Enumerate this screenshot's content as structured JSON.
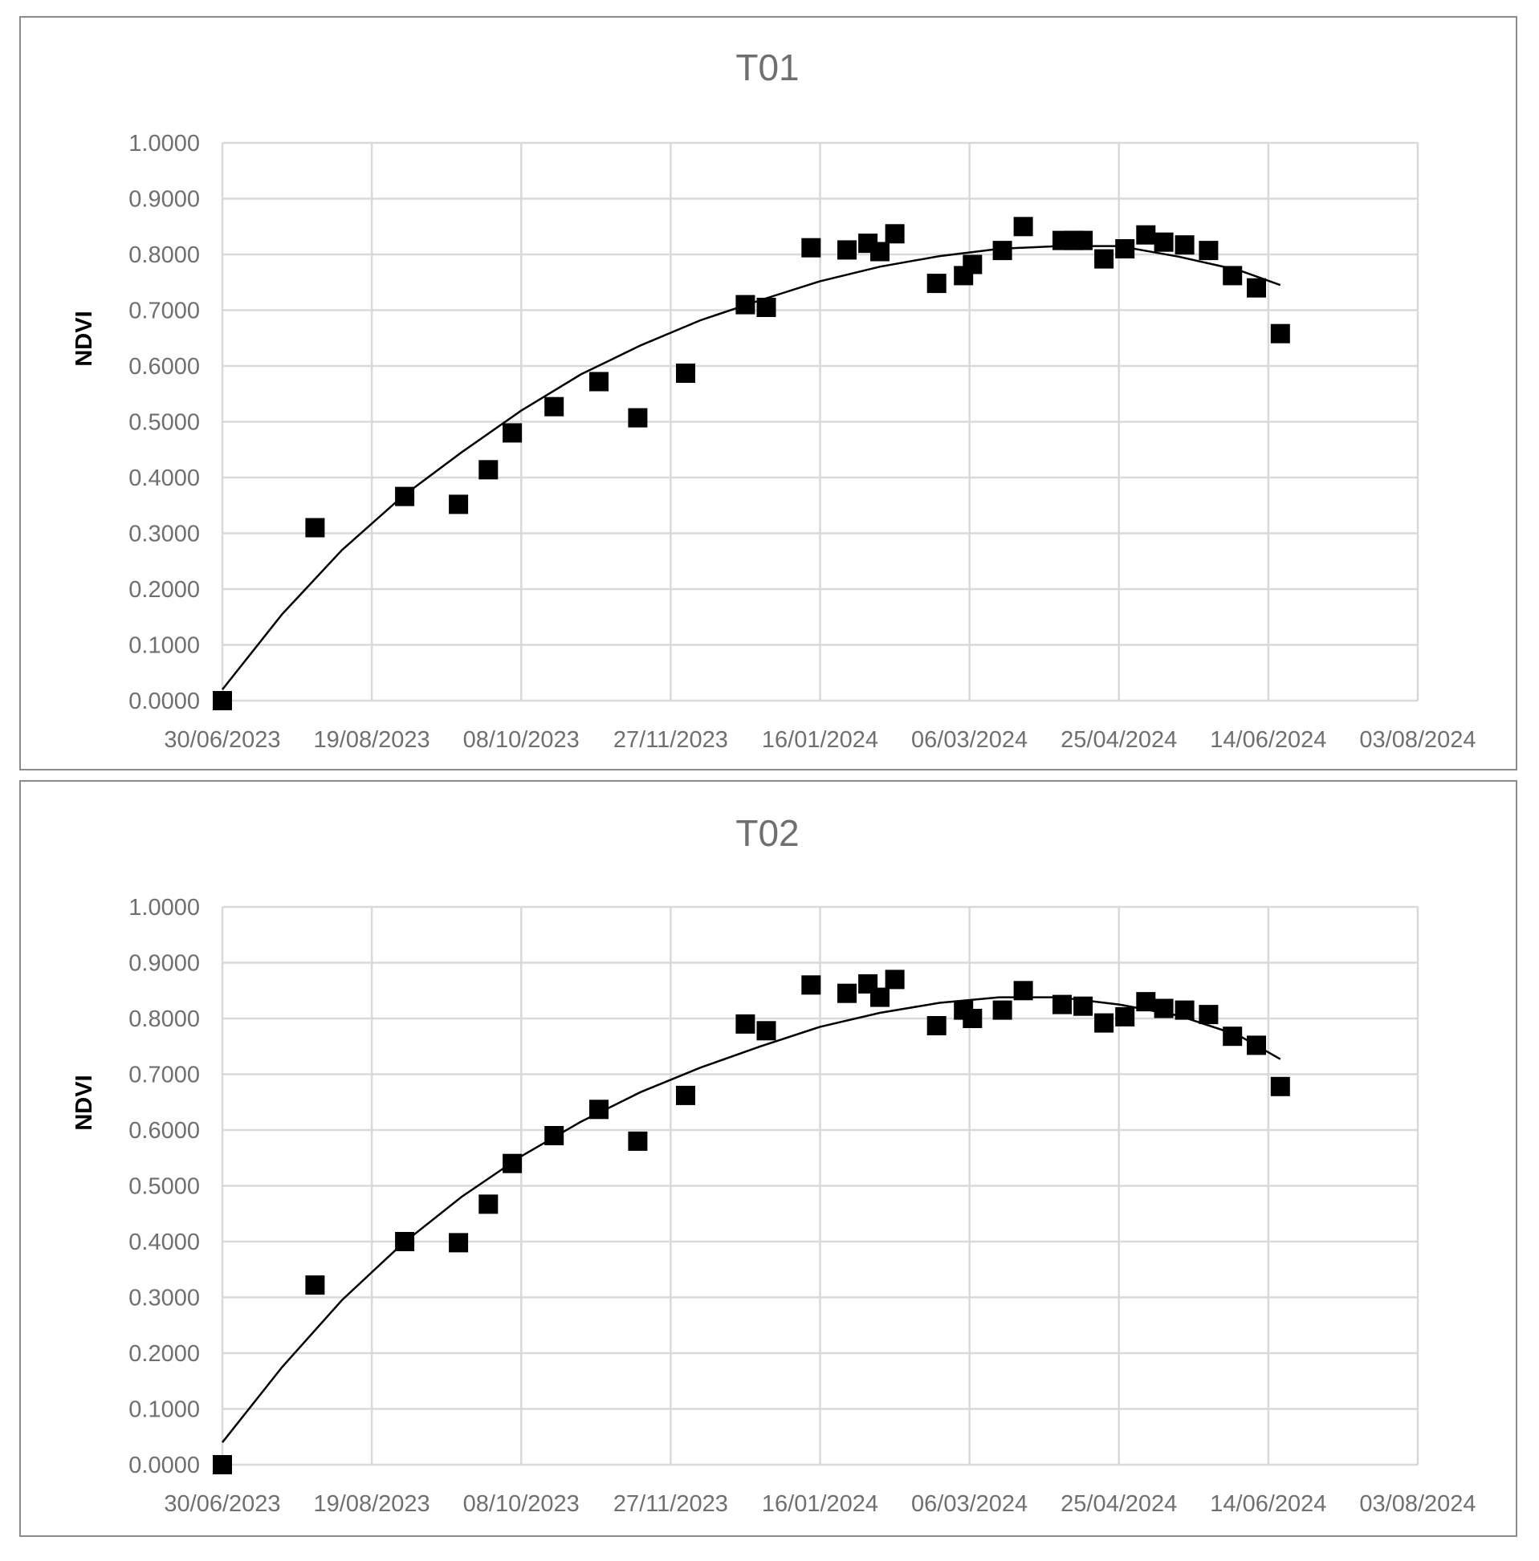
{
  "chart_data": [
    {
      "type": "scatter",
      "title": "T01",
      "xlabel": "",
      "ylabel": "NDVI",
      "xlim": [
        "30/06/2023",
        "03/08/2024"
      ],
      "ylim": [
        0,
        1
      ],
      "x_ticks": [
        "30/06/2023",
        "19/08/2023",
        "08/10/2023",
        "27/11/2023",
        "16/01/2024",
        "06/03/2024",
        "25/04/2024",
        "14/06/2024",
        "03/08/2024"
      ],
      "y_ticks": [
        "0.0000",
        "0.1000",
        "0.2000",
        "0.3000",
        "0.4000",
        "0.5000",
        "0.6000",
        "0.7000",
        "0.8000",
        "0.9000",
        "1.0000"
      ],
      "grid": true,
      "marker": "square",
      "trendline": "polynomial",
      "series": [
        {
          "points": [
            [
              "2023-06-30",
              0.0
            ],
            [
              "2023-07-31",
              0.31
            ],
            [
              "2023-08-30",
              0.366
            ],
            [
              "2023-09-17",
              0.352
            ],
            [
              "2023-09-27",
              0.414
            ],
            [
              "2023-10-05",
              0.48
            ],
            [
              "2023-10-19",
              0.527
            ],
            [
              "2023-11-03",
              0.572
            ],
            [
              "2023-11-16",
              0.507
            ],
            [
              "2023-12-02",
              0.587
            ],
            [
              "2023-12-22",
              0.71
            ],
            [
              "2023-12-29",
              0.705
            ],
            [
              "2024-01-13",
              0.812
            ],
            [
              "2024-01-25",
              0.808
            ],
            [
              "2024-02-01",
              0.82
            ],
            [
              "2024-02-05",
              0.805
            ],
            [
              "2024-02-10",
              0.837
            ],
            [
              "2024-02-24",
              0.748
            ],
            [
              "2024-03-04",
              0.762
            ],
            [
              "2024-03-07",
              0.782
            ],
            [
              "2024-03-17",
              0.807
            ],
            [
              "2024-03-24",
              0.85
            ],
            [
              "2024-04-06",
              0.825
            ],
            [
              "2024-04-10",
              0.825
            ],
            [
              "2024-04-13",
              0.825
            ],
            [
              "2024-04-20",
              0.792
            ],
            [
              "2024-04-27",
              0.81
            ],
            [
              "2024-05-04",
              0.835
            ],
            [
              "2024-05-10",
              0.822
            ],
            [
              "2024-05-17",
              0.817
            ],
            [
              "2024-05-25",
              0.807
            ],
            [
              "2024-06-02",
              0.762
            ],
            [
              "2024-06-10",
              0.74
            ],
            [
              "2024-06-18",
              0.658
            ]
          ],
          "trend": [
            [
              "2023-06-30",
              0.02
            ],
            [
              "2023-07-20",
              0.155
            ],
            [
              "2023-08-09",
              0.27
            ],
            [
              "2023-08-29",
              0.365
            ],
            [
              "2023-09-18",
              0.445
            ],
            [
              "2023-10-08",
              0.52
            ],
            [
              "2023-10-28",
              0.585
            ],
            [
              "2023-11-17",
              0.637
            ],
            [
              "2023-12-07",
              0.682
            ],
            [
              "2023-12-27",
              0.718
            ],
            [
              "2024-01-16",
              0.752
            ],
            [
              "2024-02-05",
              0.778
            ],
            [
              "2024-02-25",
              0.797
            ],
            [
              "2024-03-16",
              0.81
            ],
            [
              "2024-04-05",
              0.815
            ],
            [
              "2024-04-25",
              0.815
            ],
            [
              "2024-05-15",
              0.796
            ],
            [
              "2024-06-04",
              0.772
            ],
            [
              "2024-06-18",
              0.745
            ]
          ]
        }
      ]
    },
    {
      "type": "scatter",
      "title": "T02",
      "xlabel": "",
      "ylabel": "NDVI",
      "xlim": [
        "30/06/2023",
        "03/08/2024"
      ],
      "ylim": [
        0,
        1
      ],
      "x_ticks": [
        "30/06/2023",
        "19/08/2023",
        "08/10/2023",
        "27/11/2023",
        "16/01/2024",
        "06/03/2024",
        "25/04/2024",
        "14/06/2024",
        "03/08/2024"
      ],
      "y_ticks": [
        "0.0000",
        "0.1000",
        "0.2000",
        "0.3000",
        "0.4000",
        "0.5000",
        "0.6000",
        "0.7000",
        "0.8000",
        "0.9000",
        "1.0000"
      ],
      "grid": true,
      "marker": "square",
      "trendline": "polynomial",
      "series": [
        {
          "points": [
            [
              "2023-06-30",
              0.0
            ],
            [
              "2023-07-31",
              0.322
            ],
            [
              "2023-08-30",
              0.4
            ],
            [
              "2023-09-17",
              0.398
            ],
            [
              "2023-09-27",
              0.467
            ],
            [
              "2023-10-05",
              0.54
            ],
            [
              "2023-10-19",
              0.59
            ],
            [
              "2023-11-03",
              0.637
            ],
            [
              "2023-11-16",
              0.58
            ],
            [
              "2023-12-02",
              0.662
            ],
            [
              "2023-12-22",
              0.79
            ],
            [
              "2023-12-29",
              0.778
            ],
            [
              "2024-01-13",
              0.86
            ],
            [
              "2024-01-25",
              0.845
            ],
            [
              "2024-02-01",
              0.862
            ],
            [
              "2024-02-05",
              0.838
            ],
            [
              "2024-02-10",
              0.87
            ],
            [
              "2024-02-24",
              0.787
            ],
            [
              "2024-03-04",
              0.815
            ],
            [
              "2024-03-07",
              0.8
            ],
            [
              "2024-03-17",
              0.815
            ],
            [
              "2024-03-24",
              0.85
            ],
            [
              "2024-04-06",
              0.825
            ],
            [
              "2024-04-13",
              0.822
            ],
            [
              "2024-04-20",
              0.792
            ],
            [
              "2024-04-27",
              0.803
            ],
            [
              "2024-05-04",
              0.83
            ],
            [
              "2024-05-10",
              0.818
            ],
            [
              "2024-05-17",
              0.815
            ],
            [
              "2024-05-25",
              0.807
            ],
            [
              "2024-06-02",
              0.768
            ],
            [
              "2024-06-10",
              0.752
            ],
            [
              "2024-06-18",
              0.678
            ]
          ],
          "trend": [
            [
              "2023-06-30",
              0.04
            ],
            [
              "2023-07-20",
              0.175
            ],
            [
              "2023-08-09",
              0.295
            ],
            [
              "2023-08-29",
              0.395
            ],
            [
              "2023-09-18",
              0.48
            ],
            [
              "2023-10-08",
              0.553
            ],
            [
              "2023-10-28",
              0.615
            ],
            [
              "2023-11-17",
              0.668
            ],
            [
              "2023-12-07",
              0.712
            ],
            [
              "2023-12-27",
              0.75
            ],
            [
              "2024-01-16",
              0.785
            ],
            [
              "2024-02-05",
              0.81
            ],
            [
              "2024-02-25",
              0.828
            ],
            [
              "2024-03-16",
              0.838
            ],
            [
              "2024-04-05",
              0.838
            ],
            [
              "2024-04-25",
              0.825
            ],
            [
              "2024-05-15",
              0.805
            ],
            [
              "2024-06-04",
              0.77
            ],
            [
              "2024-06-18",
              0.727
            ]
          ]
        }
      ]
    }
  ]
}
